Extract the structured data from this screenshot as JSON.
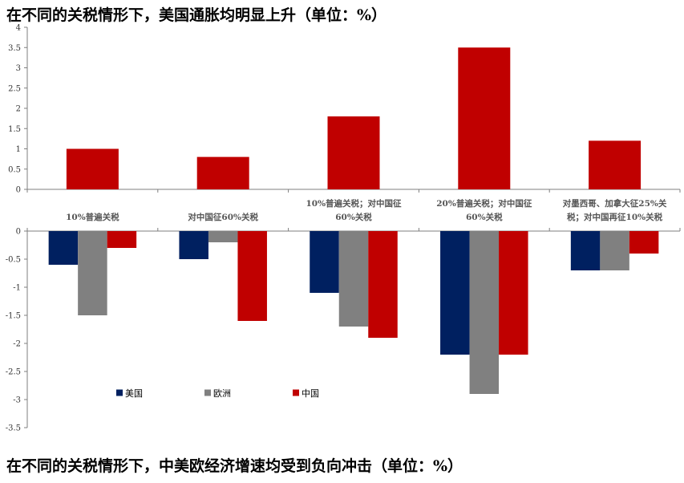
{
  "titles": {
    "top": "在不同的关税情形下，美国通胀均明显上升（单位：%）",
    "bottom": "在不同的关税情形下，中美欧经济增速均受到负向冲击（单位：%）"
  },
  "colors": {
    "us": "#002060",
    "eu": "#808080",
    "cn": "#C00000",
    "axis": "#7f7f7f",
    "text": "#333333"
  },
  "chart_data": [
    {
      "type": "bar",
      "title": "在不同的关税情形下，美国通胀均明显上升（单位：%）",
      "categories": [
        "10%普遍关税",
        "对中国征60%关税",
        "10%普遍关税；对中国征60%关税",
        "20%普遍关税；对中国征60%关税",
        "对墨西哥、加拿大征25%关税；对中国再征10%关税"
      ],
      "series": [
        {
          "values": [
            1.0,
            0.8,
            1.8,
            3.5,
            1.2
          ],
          "color": "#C00000"
        }
      ],
      "ylim": [
        0,
        4
      ],
      "yticks": [
        "4",
        "3.5",
        "3",
        "2.5",
        "2",
        "1.5",
        "1",
        "0.5",
        "0"
      ],
      "grid": false
    },
    {
      "type": "bar",
      "title": "在不同的关税情形下，中美欧经济增速均受到负向冲击（单位：%）",
      "categories": [
        "10%普遍关税",
        "对中国征60%关税",
        "10%普遍关税；对中国征60%关税",
        "20%普遍关税；对中国征60%关税",
        "对墨西哥、加拿大征25%关税；对中国再征10%关税"
      ],
      "series": [
        {
          "name": "美国",
          "values": [
            -0.6,
            -0.5,
            -1.1,
            -2.2,
            -0.7
          ],
          "color": "#002060"
        },
        {
          "name": "欧洲",
          "values": [
            -1.5,
            -0.2,
            -1.7,
            -2.9,
            -0.7
          ],
          "color": "#808080"
        },
        {
          "name": "中国",
          "values": [
            -0.3,
            -1.6,
            -1.9,
            -2.2,
            -0.4
          ],
          "color": "#C00000"
        }
      ],
      "ylim": [
        -3.5,
        0
      ],
      "yticks": [
        "0",
        "-0.5",
        "-1",
        "-1.5",
        "-2",
        "-2.5",
        "-3",
        "-3.5"
      ],
      "grid": false,
      "legend": "bottom-left"
    }
  ],
  "category_labels": [
    [
      "10%普遍关税"
    ],
    [
      "对中国征60%关税"
    ],
    [
      "10%普遍关税；对中国征",
      "60%关税"
    ],
    [
      "20%普遍关税；对中国征",
      "60%关税"
    ],
    [
      "对墨西哥、加拿大征25%关",
      "税；对中国再征10%关税"
    ]
  ]
}
